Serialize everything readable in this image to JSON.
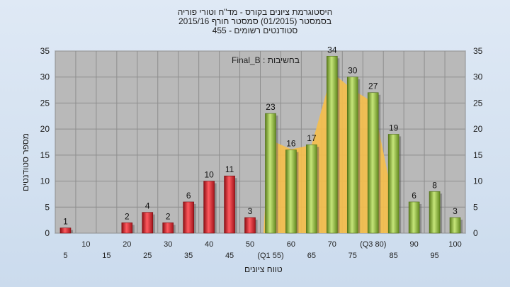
{
  "chart_data": {
    "type": "bar",
    "title": [
      "היסטוגרמת ציונים בקורס - מד\"ח וטורי פוריה",
      "בסמסטר  (01/2015)  סמסטר חורף 2015/16",
      "סטודנטים רשומים - 455"
    ],
    "annotation": "בחשיבות : Final_B",
    "xlabel": "טווח ציונים",
    "ylabel": "מספר סטודנטים",
    "ylim": [
      0,
      35
    ],
    "yticks": [
      0,
      5,
      10,
      15,
      20,
      25,
      30,
      35
    ],
    "categories": [
      "5",
      "10",
      "15",
      "20",
      "25",
      "30",
      "35",
      "40",
      "45",
      "50",
      "55",
      "60",
      "65",
      "70",
      "75",
      "80",
      "85",
      "90",
      "95",
      "100"
    ],
    "x_tick_labels": [
      "5",
      "10",
      "15",
      "20",
      "25",
      "30",
      "35",
      "40",
      "45",
      "50",
      "(Q1 55)",
      "60",
      "65",
      "70",
      "75",
      "(Q3 80)",
      "85",
      "90",
      "95",
      "100"
    ],
    "values": [
      1,
      0,
      0,
      2,
      4,
      2,
      6,
      10,
      11,
      3,
      23,
      16,
      17,
      34,
      30,
      27,
      19,
      6,
      8,
      3
    ],
    "bar_labels": [
      "1",
      "",
      "",
      "2",
      "4",
      "2",
      "6",
      "10",
      "11",
      "3",
      "23",
      "16",
      "17",
      "34",
      "30",
      "27",
      "19",
      "6",
      "8",
      "3"
    ],
    "fail_color": "#d8232a",
    "pass_color": "#8fbc3a",
    "band_color": "#f6bf4a",
    "grid": true,
    "plot_background": "#b9b9b9"
  }
}
